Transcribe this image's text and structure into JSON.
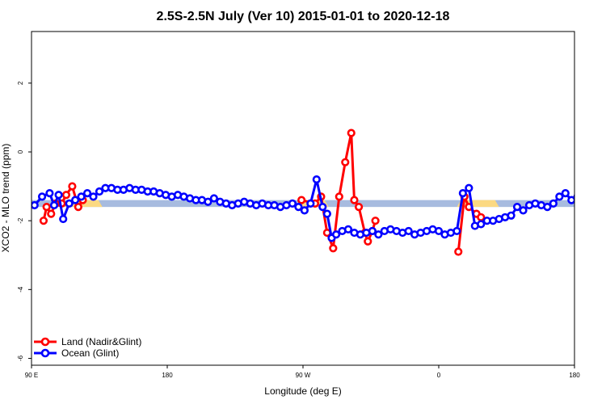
{
  "chart_data": {
    "type": "line",
    "title": "2.5S-2.5N July (Ver 10)   2015-01-01 to 2020-12-18",
    "xlabel": "Longitude (deg E)",
    "ylabel": "XCO2 - MLO trend (ppm)",
    "xlim": [
      90,
      450
    ],
    "ylim": [
      -6.2,
      3.5
    ],
    "x_ticks": [
      {
        "value": 90,
        "label": "90 E"
      },
      {
        "value": 180,
        "label": "180"
      },
      {
        "value": 270,
        "label": "90 W"
      },
      {
        "value": 360,
        "label": "0"
      },
      {
        "value": 450,
        "label": "180"
      }
    ],
    "y_ticks": [
      {
        "value": 2,
        "label": "2"
      },
      {
        "value": 0,
        "label": "0"
      },
      {
        "value": -2,
        "label": "-2"
      },
      {
        "value": -4,
        "label": "-4"
      },
      {
        "value": -6,
        "label": "-6"
      }
    ],
    "band": {
      "y_low": -1.6,
      "y_high": -1.4
    },
    "band_colors": {
      "ocean": "#a7bbdf",
      "land": "#fbd982"
    },
    "land_spans": [
      [
        112,
        137
      ],
      [
        265,
        287
      ],
      [
        372,
        400
      ],
      [
        470,
        530
      ]
    ],
    "legend": {
      "position": "bottom-left"
    },
    "series": [
      {
        "name": "Land (Nadir&Glint)",
        "color": "#ff0000",
        "segments": [
          {
            "x": [
              98,
              100,
              103,
              106,
              110,
              113,
              117,
              121,
              124
            ],
            "y": [
              -2.0,
              -1.6,
              -1.8,
              -1.5,
              -1.5,
              -1.25,
              -1.0,
              -1.6,
              -1.4
            ]
          },
          {
            "x": [
              269,
              278,
              282,
              286,
              290,
              294,
              298,
              302,
              304,
              307,
              311,
              313,
              316,
              318
            ],
            "y": [
              -1.4,
              -1.5,
              -1.3,
              -2.35,
              -2.8,
              -1.3,
              -0.3,
              0.55,
              -1.4,
              -1.6,
              -2.35,
              -2.6,
              -2.3,
              -2.0
            ]
          },
          {
            "x": [
              373,
              377,
              380,
              385,
              388
            ],
            "y": [
              -2.9,
              -1.3,
              -1.6,
              -1.8,
              -1.9
            ]
          },
          {
            "x": [
              460,
              463,
              466,
              469,
              474,
              477,
              480,
              483,
              487
            ],
            "y": [
              -2.0,
              -1.6,
              -1.8,
              -1.55,
              -1.6,
              -1.25,
              -1.0,
              -1.6,
              -1.4
            ]
          }
        ]
      },
      {
        "name": "Ocean (Glint)",
        "color": "#0000ff",
        "segments": [
          {
            "x": [
              92,
              97,
              102,
              105,
              108,
              111,
              115,
              119,
              123,
              127,
              131,
              135,
              139,
              143,
              147,
              151,
              155,
              159,
              163,
              167,
              171,
              175,
              179,
              183,
              187,
              191,
              195,
              199,
              203,
              207,
              211,
              215,
              219,
              223,
              227,
              231,
              235,
              239,
              243,
              247,
              251,
              255,
              259,
              263,
              267,
              271,
              275,
              279,
              283,
              286,
              289
            ],
            "y": [
              -1.55,
              -1.3,
              -1.2,
              -1.55,
              -1.25,
              -1.95,
              -1.5,
              -1.4,
              -1.3,
              -1.2,
              -1.3,
              -1.15,
              -1.05,
              -1.05,
              -1.1,
              -1.1,
              -1.05,
              -1.1,
              -1.1,
              -1.15,
              -1.15,
              -1.2,
              -1.25,
              -1.3,
              -1.25,
              -1.3,
              -1.35,
              -1.4,
              -1.4,
              -1.45,
              -1.35,
              -1.45,
              -1.5,
              -1.55,
              -1.5,
              -1.45,
              -1.5,
              -1.55,
              -1.5,
              -1.55,
              -1.55,
              -1.6,
              -1.55,
              -1.5,
              -1.6,
              -1.7,
              -1.5,
              -0.8,
              -1.6,
              -1.8,
              -2.5
            ]
          },
          {
            "x": [
              292,
              296,
              300,
              304,
              308,
              312,
              316,
              320,
              324,
              328,
              332,
              336,
              340,
              344,
              348,
              352,
              356,
              360,
              364,
              368,
              372,
              376,
              380,
              384,
              388,
              392,
              396,
              400,
              404,
              408,
              412,
              416,
              420,
              424,
              428,
              432,
              436,
              440,
              444,
              448,
              452,
              456,
              460,
              464,
              468,
              472,
              476,
              480,
              484,
              488,
              492,
              496,
              500
            ],
            "y": [
              -2.4,
              -2.3,
              -2.25,
              -2.35,
              -2.4,
              -2.35,
              -2.3,
              -2.4,
              -2.3,
              -2.25,
              -2.3,
              -2.35,
              -2.3,
              -2.4,
              -2.35,
              -2.3,
              -2.25,
              -2.3,
              -2.4,
              -2.35,
              -2.3,
              -1.2,
              -1.05,
              -2.15,
              -2.1,
              -2.0,
              -2.0,
              -1.95,
              -1.9,
              -1.85,
              -1.6,
              -1.7,
              -1.55,
              -1.5,
              -1.55,
              -1.6,
              -1.5,
              -1.3,
              -1.2,
              -1.4,
              -1.3,
              -1.9,
              -1.55,
              -1.5,
              -1.4,
              -1.35,
              -1.3,
              -1.15,
              -1.3,
              -1.15,
              -1.05,
              -1.0,
              -1.1
            ]
          }
        ]
      }
    ]
  }
}
